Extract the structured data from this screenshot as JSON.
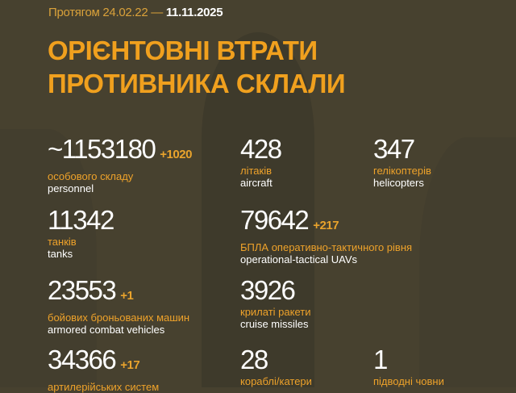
{
  "header": {
    "period_label": "Протягом 24.02.22 —",
    "period_end": "11.11.2025",
    "title_line1": "ОРІЄНТОВНІ ВТРАТИ",
    "title_line2": "ПРОТИВНИКА СКЛАЛИ"
  },
  "colors": {
    "background": "#47412f",
    "accent": "#f0a01e",
    "text": "#ffffff"
  },
  "stats": [
    {
      "value": "~1153180",
      "delta": "+1020",
      "ua": "особового складу",
      "en": "personnel"
    },
    {
      "value": "428",
      "delta": "",
      "ua": "літаків",
      "en": "aircraft"
    },
    {
      "value": "347",
      "delta": "",
      "ua": "гелікоптерів",
      "en": "helicopters"
    },
    {
      "value": "11342",
      "delta": "",
      "ua": "танків",
      "en": "tanks"
    },
    {
      "value": "79642",
      "delta": "+217",
      "ua": "БПЛА оперативно-тактичного рівня",
      "en": "operational-tactical UAVs"
    },
    {
      "value": "23553",
      "delta": "+1",
      "ua": "бойових броньованих машин",
      "en": "armored combat vehicles"
    },
    {
      "value": "3926",
      "delta": "",
      "ua": "крилаті ракети",
      "en": "cruise missiles"
    },
    {
      "value": "34366",
      "delta": "+17",
      "ua": "артилерійських систем",
      "en": ""
    },
    {
      "value": "28",
      "delta": "",
      "ua": "кораблі/катери",
      "en": ""
    },
    {
      "value": "1",
      "delta": "",
      "ua": "підводні човни",
      "en": ""
    }
  ]
}
